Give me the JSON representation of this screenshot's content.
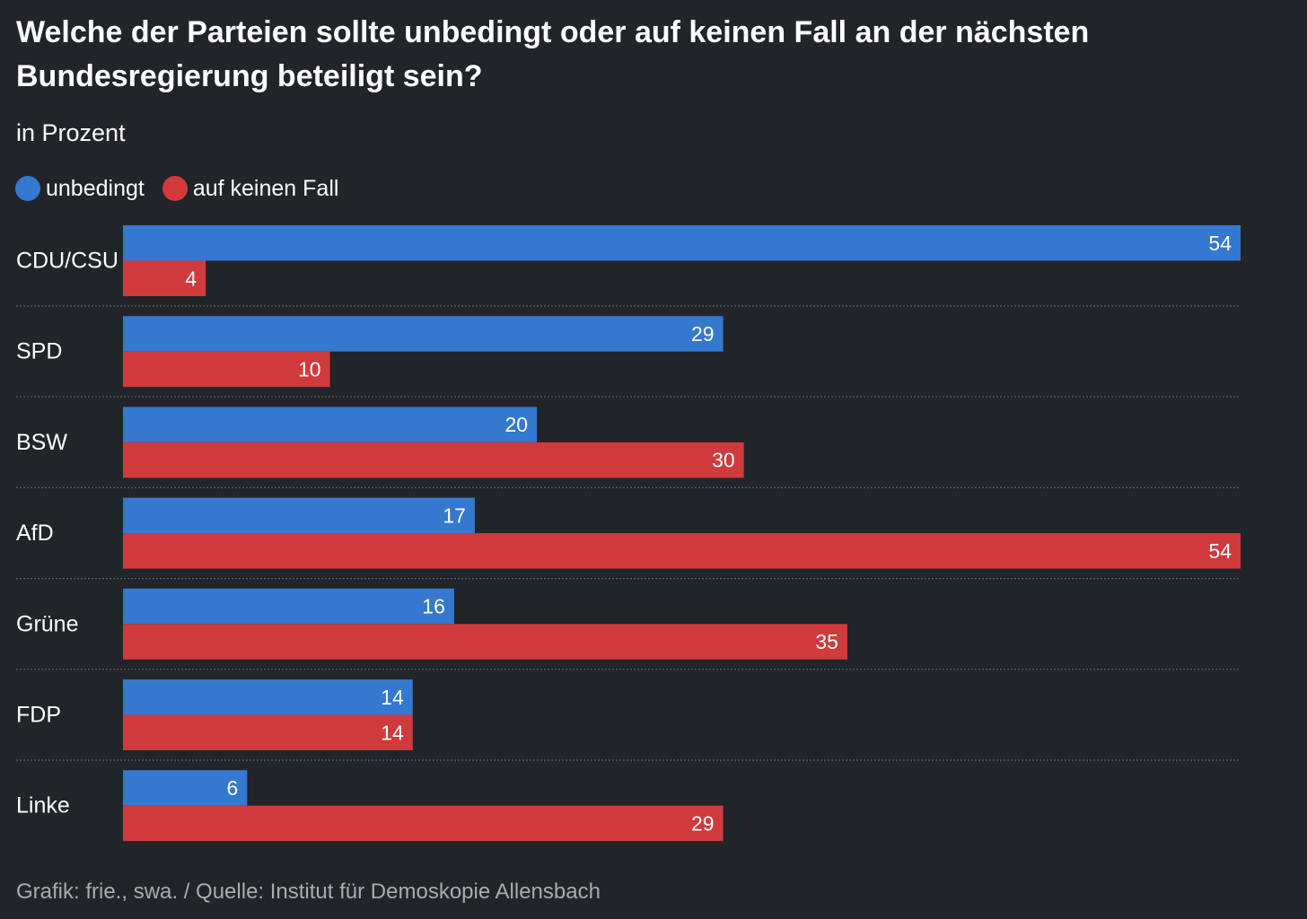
{
  "header": {
    "title": "Welche der Parteien sollte unbedingt oder auf keinen Fall an der nächsten Bundesregierung beteiligt sein?",
    "subtitle": "in Prozent"
  },
  "legend": {
    "items": [
      {
        "label": "unbedingt",
        "color": "#3478cf"
      },
      {
        "label": "auf keinen Fall",
        "color": "#d03a3c"
      }
    ]
  },
  "chart_data": {
    "type": "bar",
    "orientation": "horizontal",
    "title": "Welche der Parteien sollte unbedingt oder auf keinen Fall an der nächsten Bundesregierung beteiligt sein?",
    "subtitle": "in Prozent",
    "categories": [
      "CDU/CSU",
      "SPD",
      "BSW",
      "AfD",
      "Grüne",
      "FDP",
      "Linke"
    ],
    "series": [
      {
        "name": "unbedingt",
        "color": "#3478cf",
        "values": [
          54,
          29,
          20,
          17,
          16,
          14,
          6
        ]
      },
      {
        "name": "auf keinen Fall",
        "color": "#d03a3c",
        "values": [
          4,
          10,
          30,
          54,
          35,
          14,
          29
        ]
      }
    ],
    "xlim": [
      0,
      54
    ],
    "grid": false,
    "legend_position": "top-left",
    "data_labels": true
  },
  "footer": {
    "source": "Grafik: frie., swa. / Quelle: Institut für Demoskopie Allensbach"
  },
  "colors": {
    "background": "#212429",
    "text": "#ffffff",
    "muted_text": "#a9abaf",
    "separator": "#5a5d62"
  }
}
